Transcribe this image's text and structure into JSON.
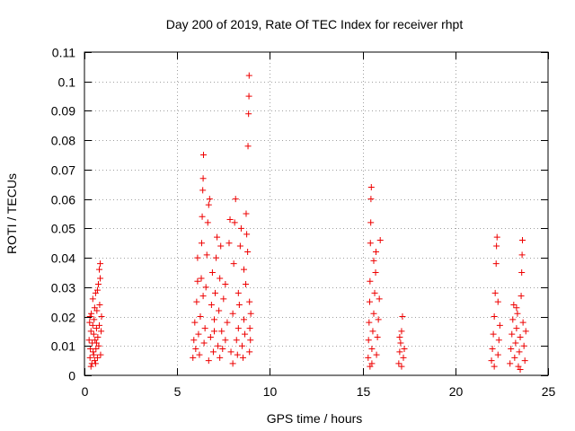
{
  "chart_data": {
    "type": "scatter",
    "title": "Day 200 of 2019, Rate Of TEC Index for receiver rhpt",
    "xlabel": "GPS time / hours",
    "ylabel": "ROTI / TECUs",
    "xlim": [
      0,
      25
    ],
    "ylim": [
      0,
      0.11
    ],
    "xticks": [
      0,
      5,
      10,
      15,
      20,
      25
    ],
    "xtick_labels": [
      "0",
      "5",
      "10",
      "15",
      "20",
      "25"
    ],
    "yticks": [
      0,
      0.01,
      0.02,
      0.03,
      0.04,
      0.05,
      0.06,
      0.07,
      0.08,
      0.09,
      0.1,
      0.11
    ],
    "ytick_labels": [
      "0",
      "0.01",
      "0.02",
      "0.03",
      "0.04",
      "0.05",
      "0.06",
      "0.07",
      "0.08",
      "0.09",
      "0.1",
      "0.11"
    ],
    "grid": true,
    "marker": "+",
    "marker_color": "#ee0000",
    "series": [
      {
        "name": "ROTI",
        "points": [
          [
            0.25,
            0.012
          ],
          [
            0.28,
            0.018
          ],
          [
            0.3,
            0.006
          ],
          [
            0.32,
            0.009
          ],
          [
            0.35,
            0.015
          ],
          [
            0.37,
            0.021
          ],
          [
            0.4,
            0.004
          ],
          [
            0.42,
            0.011
          ],
          [
            0.45,
            0.026
          ],
          [
            0.47,
            0.008
          ],
          [
            0.5,
            0.014
          ],
          [
            0.52,
            0.019
          ],
          [
            0.55,
            0.005
          ],
          [
            0.57,
            0.012
          ],
          [
            0.6,
            0.028
          ],
          [
            0.62,
            0.009
          ],
          [
            0.65,
            0.016
          ],
          [
            0.67,
            0.022
          ],
          [
            0.7,
            0.006
          ],
          [
            0.72,
            0.013
          ],
          [
            0.75,
            0.031
          ],
          [
            0.77,
            0.01
          ],
          [
            0.8,
            0.017
          ],
          [
            0.82,
            0.024
          ],
          [
            0.85,
            0.033
          ],
          [
            0.87,
            0.007
          ],
          [
            0.9,
            0.015
          ],
          [
            0.92,
            0.02
          ],
          [
            0.8,
            0.036
          ],
          [
            0.85,
            0.038
          ],
          [
            0.35,
            0.003
          ],
          [
            0.6,
            0.004
          ],
          [
            0.45,
            0.017
          ],
          [
            0.55,
            0.023
          ],
          [
            0.7,
            0.029
          ],
          [
            0.65,
            0.011
          ],
          [
            0.3,
            0.02
          ],
          [
            0.5,
            0.007
          ],
          [
            5.85,
            0.006
          ],
          [
            5.9,
            0.012
          ],
          [
            5.95,
            0.018
          ],
          [
            6.0,
            0.009
          ],
          [
            6.05,
            0.025
          ],
          [
            6.1,
            0.032
          ],
          [
            6.15,
            0.014
          ],
          [
            6.2,
            0.007
          ],
          [
            6.25,
            0.02
          ],
          [
            6.3,
            0.033
          ],
          [
            6.32,
            0.045
          ],
          [
            6.35,
            0.054
          ],
          [
            6.38,
            0.063
          ],
          [
            6.4,
            0.067
          ],
          [
            6.42,
            0.075
          ],
          [
            6.45,
            0.011
          ],
          [
            6.5,
            0.016
          ],
          [
            6.55,
            0.03
          ],
          [
            6.6,
            0.041
          ],
          [
            6.65,
            0.052
          ],
          [
            6.7,
            0.058
          ],
          [
            6.75,
            0.06
          ],
          [
            6.8,
            0.013
          ],
          [
            6.85,
            0.024
          ],
          [
            6.9,
            0.035
          ],
          [
            6.95,
            0.008
          ],
          [
            7.0,
            0.019
          ],
          [
            7.05,
            0.028
          ],
          [
            7.1,
            0.04
          ],
          [
            7.15,
            0.047
          ],
          [
            7.2,
            0.01
          ],
          [
            7.25,
            0.022
          ],
          [
            7.3,
            0.033
          ],
          [
            7.35,
            0.044
          ],
          [
            7.4,
            0.015
          ],
          [
            7.45,
            0.009
          ],
          [
            7.5,
            0.026
          ],
          [
            7.6,
            0.012
          ],
          [
            7.7,
            0.018
          ],
          [
            7.8,
            0.045
          ],
          [
            7.85,
            0.053
          ],
          [
            7.9,
            0.008
          ],
          [
            8.0,
            0.021
          ],
          [
            8.05,
            0.038
          ],
          [
            8.1,
            0.052
          ],
          [
            8.15,
            0.06
          ],
          [
            8.2,
            0.012
          ],
          [
            8.25,
            0.007
          ],
          [
            8.3,
            0.016
          ],
          [
            8.35,
            0.024
          ],
          [
            8.4,
            0.044
          ],
          [
            8.45,
            0.05
          ],
          [
            8.5,
            0.01
          ],
          [
            8.55,
            0.006
          ],
          [
            8.6,
            0.019
          ],
          [
            8.65,
            0.014
          ],
          [
            8.7,
            0.031
          ],
          [
            8.72,
            0.055
          ],
          [
            8.75,
            0.048
          ],
          [
            8.8,
            0.042
          ],
          [
            8.82,
            0.078
          ],
          [
            8.85,
            0.089
          ],
          [
            8.87,
            0.095
          ],
          [
            8.88,
            0.102
          ],
          [
            8.9,
            0.008
          ],
          [
            8.92,
            0.016
          ],
          [
            8.95,
            0.012
          ],
          [
            8.97,
            0.021
          ],
          [
            6.1,
            0.04
          ],
          [
            6.4,
            0.027
          ],
          [
            6.7,
            0.005
          ],
          [
            7.0,
            0.015
          ],
          [
            7.3,
            0.006
          ],
          [
            7.6,
            0.031
          ],
          [
            8.0,
            0.004
          ],
          [
            8.3,
            0.028
          ],
          [
            8.6,
            0.036
          ],
          [
            8.9,
            0.025
          ],
          [
            15.3,
            0.006
          ],
          [
            15.32,
            0.012
          ],
          [
            15.35,
            0.018
          ],
          [
            15.38,
            0.025
          ],
          [
            15.4,
            0.032
          ],
          [
            15.42,
            0.045
          ],
          [
            15.44,
            0.052
          ],
          [
            15.45,
            0.06
          ],
          [
            15.47,
            0.064
          ],
          [
            15.5,
            0.009
          ],
          [
            15.55,
            0.015
          ],
          [
            15.6,
            0.021
          ],
          [
            15.65,
            0.028
          ],
          [
            15.7,
            0.035
          ],
          [
            15.72,
            0.042
          ],
          [
            15.75,
            0.007
          ],
          [
            15.8,
            0.013
          ],
          [
            15.85,
            0.019
          ],
          [
            15.9,
            0.026
          ],
          [
            15.95,
            0.046
          ],
          [
            15.5,
            0.004
          ],
          [
            15.6,
            0.039
          ],
          [
            15.4,
            0.003
          ],
          [
            16.95,
            0.004
          ],
          [
            17.0,
            0.008
          ],
          [
            17.05,
            0.011
          ],
          [
            17.1,
            0.015
          ],
          [
            17.15,
            0.02
          ],
          [
            17.2,
            0.006
          ],
          [
            17.25,
            0.009
          ],
          [
            17.0,
            0.013
          ],
          [
            17.1,
            0.003
          ],
          [
            21.95,
            0.005
          ],
          [
            22.0,
            0.009
          ],
          [
            22.05,
            0.014
          ],
          [
            22.1,
            0.02
          ],
          [
            22.15,
            0.028
          ],
          [
            22.2,
            0.038
          ],
          [
            22.22,
            0.044
          ],
          [
            22.25,
            0.047
          ],
          [
            22.3,
            0.007
          ],
          [
            22.35,
            0.012
          ],
          [
            22.4,
            0.017
          ],
          [
            22.1,
            0.003
          ],
          [
            22.3,
            0.025
          ],
          [
            22.95,
            0.004
          ],
          [
            23.0,
            0.009
          ],
          [
            23.05,
            0.014
          ],
          [
            23.1,
            0.019
          ],
          [
            23.15,
            0.024
          ],
          [
            23.2,
            0.006
          ],
          [
            23.25,
            0.011
          ],
          [
            23.3,
            0.016
          ],
          [
            23.35,
            0.021
          ],
          [
            23.4,
            0.003
          ],
          [
            23.45,
            0.008
          ],
          [
            23.5,
            0.013
          ],
          [
            23.55,
            0.027
          ],
          [
            23.58,
            0.035
          ],
          [
            23.6,
            0.041
          ],
          [
            23.62,
            0.046
          ],
          [
            23.65,
            0.018
          ],
          [
            23.7,
            0.01
          ],
          [
            23.75,
            0.005
          ],
          [
            23.8,
            0.015
          ],
          [
            23.5,
            0.002
          ],
          [
            23.3,
            0.023
          ]
        ]
      }
    ]
  }
}
